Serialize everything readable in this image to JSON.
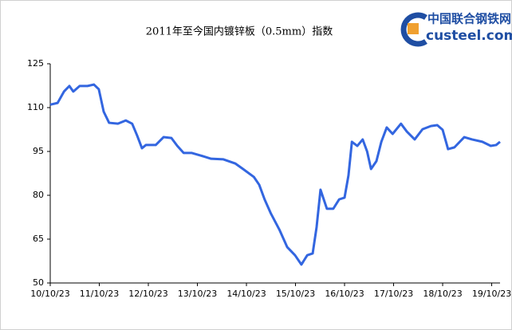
{
  "chart_data": {
    "type": "line",
    "title": "2011年至今国内镀锌板（0.5mm）指数",
    "logo": {
      "name": "中国联合钢铁网",
      "site": "custeel.com"
    },
    "x": [
      0,
      0.15,
      0.28,
      0.39,
      0.47,
      0.6,
      0.76,
      0.89,
      0.99,
      1.09,
      1.2,
      1.38,
      1.54,
      1.67,
      1.77,
      1.87,
      1.95,
      2.15,
      2.31,
      2.47,
      2.59,
      2.72,
      2.88,
      3.07,
      3.28,
      3.53,
      3.77,
      3.93,
      4.15,
      4.26,
      4.37,
      4.5,
      4.67,
      4.83,
      4.99,
      5.12,
      5.24,
      5.35,
      5.43,
      5.51,
      5.64,
      5.77,
      5.89,
      6.0,
      6.08,
      6.15,
      6.26,
      6.37,
      6.46,
      6.54,
      6.65,
      6.75,
      6.86,
      6.98,
      7.15,
      7.27,
      7.43,
      7.59,
      7.76,
      7.89,
      8.0,
      8.11,
      8.24,
      8.44,
      8.6,
      8.81,
      8.98,
      9.09,
      9.17
    ],
    "series": [
      {
        "color": "#3366e0",
        "values": [
          111,
          111.6,
          115.5,
          117.4,
          115.5,
          117.4,
          117.4,
          117.9,
          116.3,
          108.6,
          104.8,
          104.5,
          105.6,
          104.5,
          100.5,
          96.1,
          97.2,
          97.2,
          99.9,
          99.6,
          96.9,
          94.5,
          94.5,
          93.6,
          92.5,
          92.3,
          90.9,
          89.0,
          86.3,
          83.6,
          78.6,
          73.7,
          68.3,
          62.3,
          59.5,
          56.3,
          59.5,
          60.1,
          69.1,
          81.9,
          75.4,
          75.4,
          78.6,
          79.2,
          86.8,
          98.3,
          96.9,
          99.1,
          95.0,
          89.0,
          91.7,
          98.3,
          103.2,
          101.0,
          104.5,
          101.8,
          99.1,
          102.6,
          103.7,
          104.0,
          102.4,
          95.8,
          96.4,
          99.9,
          99.1,
          98.3,
          96.9,
          97.2,
          98.3
        ]
      }
    ],
    "xlim": [
      0,
      9.17
    ],
    "xticks": [
      {
        "value": 0,
        "label": "10/10/23"
      },
      {
        "value": 1,
        "label": "11/10/23"
      },
      {
        "value": 2,
        "label": "12/10/23"
      },
      {
        "value": 3,
        "label": "13/10/23"
      },
      {
        "value": 4,
        "label": "14/10/23"
      },
      {
        "value": 5,
        "label": "15/10/23"
      },
      {
        "value": 6,
        "label": "16/10/23"
      },
      {
        "value": 7,
        "label": "17/10/23"
      },
      {
        "value": 8,
        "label": "18/10/23"
      },
      {
        "value": 9,
        "label": "19/10/23"
      }
    ],
    "ylim": [
      50,
      125
    ],
    "yticks": [
      50,
      65,
      80,
      95,
      110,
      125
    ]
  }
}
